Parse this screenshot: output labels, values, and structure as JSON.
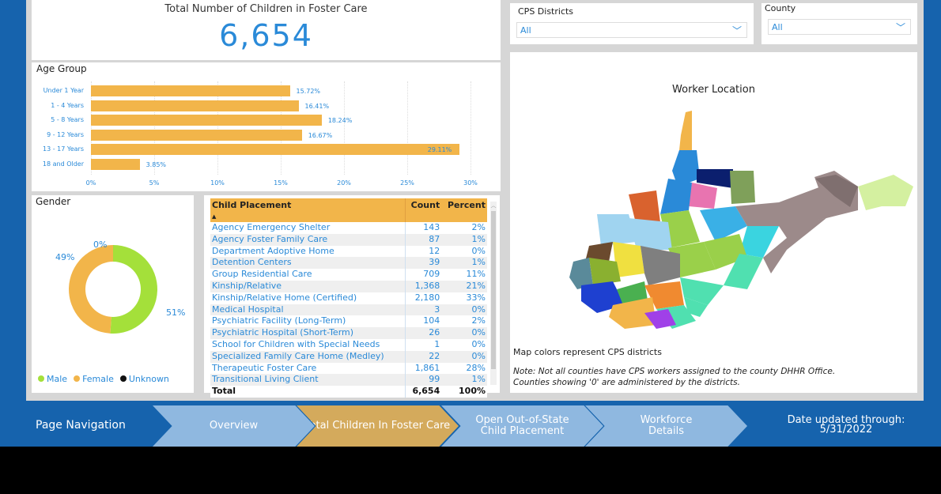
{
  "total": {
    "title": "Total Number of Children in Foster Care",
    "value": "6,654"
  },
  "age": {
    "title": "Age Group",
    "categories": [
      "Under 1 Year",
      "1 - 4 Years",
      "5 - 8 Years",
      "9 - 12 Years",
      "13 - 17 Years",
      "18 and Older"
    ],
    "values": [
      15.72,
      16.41,
      18.24,
      16.67,
      29.11,
      3.85
    ],
    "labels": [
      "15.72%",
      "16.41%",
      "18.24%",
      "16.67%",
      "29.11%",
      "3.85%"
    ],
    "ticks": [
      "0%",
      "5%",
      "10%",
      "15%",
      "20%",
      "25%",
      "30%"
    ],
    "xlim": [
      0,
      30
    ],
    "bar_color": "#f2b54a"
  },
  "gender": {
    "title": "Gender",
    "slices": [
      {
        "name": "Male",
        "value": 51,
        "label": "51%",
        "color": "#a4e03a"
      },
      {
        "name": "Female",
        "value": 49,
        "label": "49%",
        "color": "#f2b54a"
      },
      {
        "name": "Unknown",
        "value": 0,
        "label": "0%",
        "color": "#111111"
      }
    ]
  },
  "placement": {
    "headers": [
      "Child Placement",
      "Count",
      "Percent"
    ],
    "rows": [
      [
        "Agency Emergency Shelter",
        "143",
        "2%"
      ],
      [
        "Agency Foster Family Care",
        "87",
        "1%"
      ],
      [
        "Department Adoptive Home",
        "12",
        "0%"
      ],
      [
        "Detention Centers",
        "39",
        "1%"
      ],
      [
        "Group Residential Care",
        "709",
        "11%"
      ],
      [
        "Kinship/Relative",
        "1,368",
        "21%"
      ],
      [
        "Kinship/Relative Home (Certified)",
        "2,180",
        "33%"
      ],
      [
        "Medical Hospital",
        "3",
        "0%"
      ],
      [
        "Psychiatric Facility (Long-Term)",
        "104",
        "2%"
      ],
      [
        "Psychiatric Hospital (Short-Term)",
        "26",
        "0%"
      ],
      [
        "School for Children with Special Needs",
        "1",
        "0%"
      ],
      [
        "Specialized Family Care Home (Medley)",
        "22",
        "0%"
      ],
      [
        "Therapeutic Foster Care",
        "1,861",
        "28%"
      ],
      [
        "Transitional Living Client",
        "99",
        "1%"
      ]
    ],
    "total": [
      "Total",
      "6,654",
      "100%"
    ]
  },
  "filters": {
    "cps_label": "CPS Districts",
    "cps_value": "All",
    "county_label": "County",
    "county_value": "All"
  },
  "map": {
    "title": "Worker Location",
    "caption": "Map colors represent CPS districts",
    "note1": "Note: Not all counties have CPS workers assigned to the county DHHR Office.",
    "note2": "Counties showing '0' are administered by the districts."
  },
  "nav": {
    "label": "Page Navigation",
    "items": [
      "Overview",
      "Total Children In Foster Care",
      "Open Out-of-State Child Placement",
      "Workforce Details"
    ],
    "active": 1,
    "date_label": "Date updated through:",
    "date": "5/31/2022"
  },
  "colors": {
    "background": "#1663ad",
    "accent": "#2a8ad8",
    "active_nav": "#d4aa5c",
    "nav": "#8fb8e0"
  }
}
